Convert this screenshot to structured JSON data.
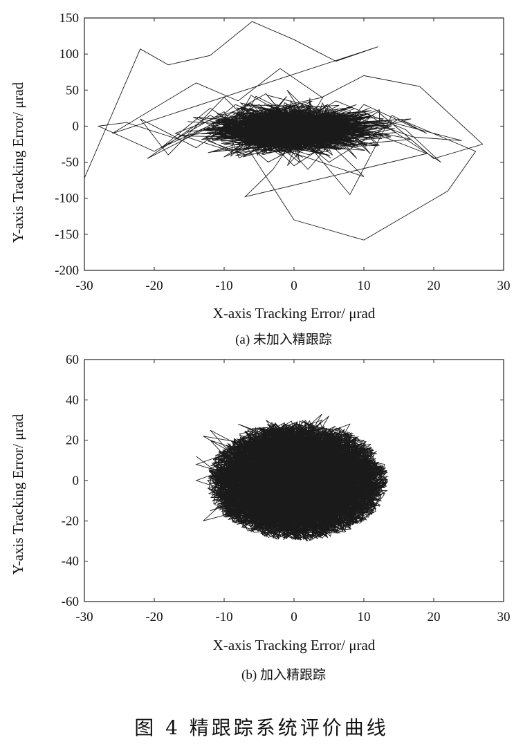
{
  "chart_data": [
    {
      "type": "line",
      "subtitle": "(a) 未加入精跟踪",
      "xlabel": "X-axis Tracking Error/ μrad",
      "ylabel": "Y-axis Tracking Error/ μrad",
      "xlim": [
        -30,
        30
      ],
      "ylim": [
        -200,
        150
      ],
      "xticks": [
        -30,
        -20,
        -10,
        0,
        10,
        20,
        30
      ],
      "yticks": [
        150,
        100,
        50,
        0,
        -50,
        -100,
        -150,
        -200
      ],
      "grid": false,
      "series": [
        {
          "x": [
            -30,
            -22,
            -18,
            -12,
            -6,
            0,
            6,
            12,
            -26,
            -14,
            -8,
            -2,
            4,
            10,
            18,
            27,
            20,
            12,
            0,
            -10,
            -18,
            -22,
            -14,
            -6,
            2,
            10,
            19,
            14,
            8,
            -4,
            -16,
            -24,
            -28,
            -20,
            -10,
            0,
            10,
            22,
            26,
            15,
            5,
            -5,
            -15,
            -21,
            -12,
            -4,
            6,
            16,
            21,
            10,
            0,
            -10,
            -19,
            -12,
            -2,
            8,
            17,
            24,
            14,
            4,
            -6,
            -17,
            -9,
            1,
            11,
            19,
            -7,
            -3,
            3,
            9,
            -1,
            2,
            10,
            -10,
            -8,
            0,
            6
          ],
          "y": [
            -72,
            107,
            85,
            98,
            145,
            120,
            90,
            110,
            -10,
            60,
            35,
            80,
            40,
            70,
            55,
            -25,
            -45,
            20,
            -55,
            40,
            -40,
            10,
            -30,
            25,
            -60,
            30,
            -10,
            15,
            -95,
            45,
            -20,
            5,
            0,
            -35,
            20,
            -130,
            -158,
            -90,
            -35,
            10,
            -50,
            30,
            -15,
            -45,
            15,
            -25,
            35,
            -5,
            -50,
            20,
            -20,
            10,
            -30,
            25,
            -40,
            15,
            -15,
            -20,
            5,
            -10,
            30,
            -10,
            -35,
            18,
            -8,
            -38,
            -98,
            -60,
            25,
            -45,
            50,
            5,
            -70,
            -5,
            15,
            -25,
            10
          ]
        }
      ]
    },
    {
      "type": "line",
      "subtitle": "(b) 加入精跟踪",
      "xlabel": "X-axis Tracking Error/ μrad",
      "ylabel": "Y-axis Tracking Error/ μrad",
      "xlim": [
        -30,
        30
      ],
      "ylim": [
        -60,
        60
      ],
      "xticks": [
        -30,
        -20,
        -10,
        0,
        10,
        20,
        30
      ],
      "yticks": [
        60,
        40,
        20,
        0,
        -20,
        -40,
        -60
      ],
      "grid": false,
      "series": [
        {
          "x": [
            -14,
            2,
            -12,
            10,
            -8,
            12,
            -13,
            4,
            -6,
            11,
            -11,
            0,
            8,
            -14,
            6,
            -4,
            10,
            -10,
            3,
            -7,
            12,
            -12,
            1,
            9,
            -9,
            5,
            -3,
            11,
            -13,
            7,
            -5,
            2,
            -11,
            10,
            -2,
            6,
            -8,
            12,
            -6,
            4,
            -14,
            9,
            -1,
            -10,
            8,
            0,
            -7,
            11,
            -12,
            3
          ],
          "y": [
            12,
            -30,
            25,
            -15,
            20,
            3,
            -20,
            33,
            -25,
            18,
            5,
            -20,
            28,
            0,
            -22,
            30,
            -5,
            -18,
            25,
            10,
            -8,
            20,
            -28,
            15,
            -10,
            32,
            -15,
            8,
            22,
            -18,
            26,
            0,
            -12,
            20,
            -25,
            10,
            28,
            -2,
            -20,
            30,
            8,
            -15,
            22,
            15,
            -20,
            25,
            -8,
            12,
            -15,
            5
          ]
        }
      ]
    }
  ],
  "caption": "图 4   精跟踪系统评价曲线"
}
